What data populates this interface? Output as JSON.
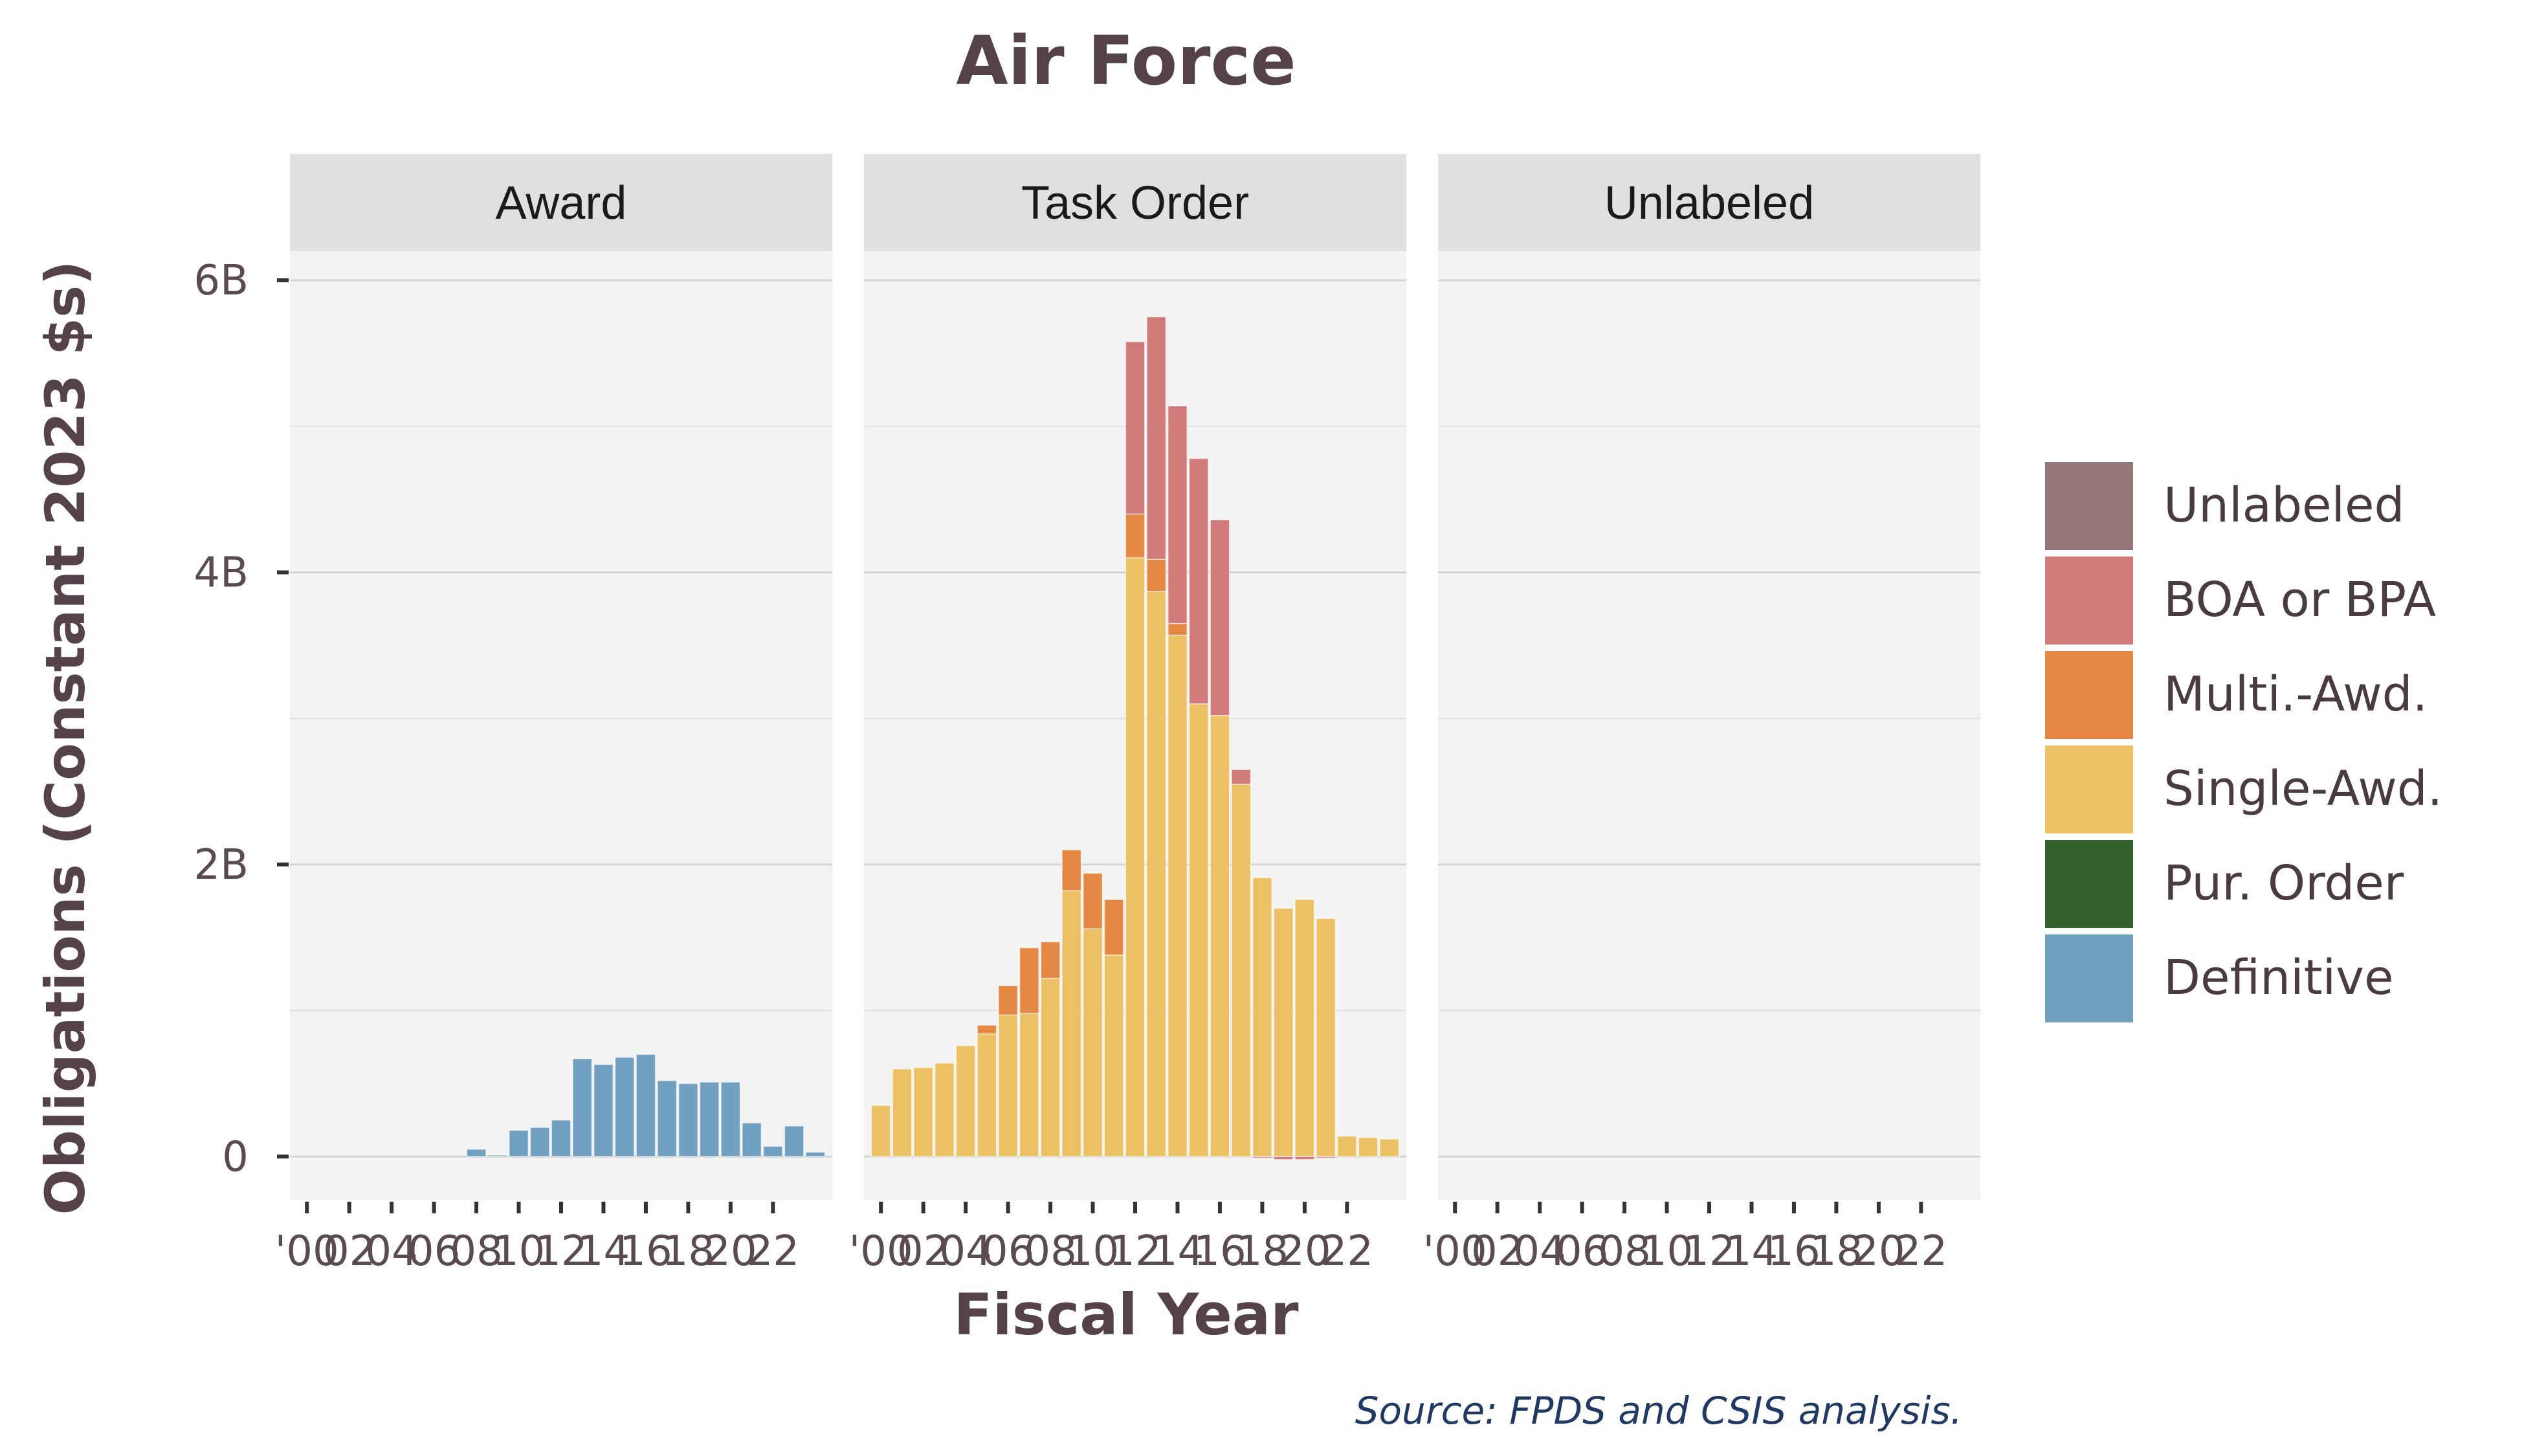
{
  "chart_data": {
    "type": "bar",
    "stacked": true,
    "title": "Air Force",
    "xlabel": "Fiscal Year",
    "ylabel": "Obligations (Constant 2023 $s)",
    "source": "Source: FPDS and CSIS analysis.",
    "ylim": [
      -0.3,
      6.2
    ],
    "y_ticks": [
      {
        "value": 0,
        "label": "0"
      },
      {
        "value": 2,
        "label": "2B"
      },
      {
        "value": 4,
        "label": "4B"
      },
      {
        "value": 6,
        "label": "6B"
      }
    ],
    "x_tick_years": [
      2000,
      2002,
      2004,
      2006,
      2008,
      2010,
      2012,
      2014,
      2016,
      2018,
      2020,
      2022
    ],
    "x_tick_labels": [
      "'00",
      "02",
      "04",
      "06",
      "08",
      "10",
      "12",
      "14",
      "16",
      "18",
      "20",
      "22"
    ],
    "x_range": [
      1999.2,
      2024.8
    ],
    "years": [
      2000,
      2001,
      2002,
      2003,
      2004,
      2005,
      2006,
      2007,
      2008,
      2009,
      2010,
      2011,
      2012,
      2013,
      2014,
      2015,
      2016,
      2017,
      2018,
      2019,
      2020,
      2021,
      2022,
      2023,
      2024
    ],
    "grid": true,
    "legend_position": "right",
    "legend": [
      {
        "name": "Unlabeled",
        "color": "#967878"
      },
      {
        "name": "BOA or BPA",
        "color": "#d27b7b"
      },
      {
        "name": "Multi.-Awd.",
        "color": "#e48844"
      },
      {
        "name": "Single-Awd.",
        "color": "#ecc064"
      },
      {
        "name": "Pur. Order",
        "color": "#33622e"
      },
      {
        "name": "Definitive",
        "color": "#72a0c1"
      }
    ],
    "stack_order": [
      "Single-Awd.",
      "Multi.-Awd.",
      "BOA or BPA",
      "Definitive"
    ],
    "panels": [
      {
        "label": "Award",
        "series": [
          {
            "name": "Definitive",
            "values": [
              0,
              0,
              0,
              0,
              0,
              0,
              0,
              0,
              0.05,
              0.01,
              0.18,
              0.2,
              0.25,
              0.67,
              0.63,
              0.68,
              0.7,
              0.52,
              0.5,
              0.51,
              0.51,
              0.23,
              0.07,
              0.21,
              0.03
            ]
          }
        ]
      },
      {
        "label": "Task Order",
        "series": [
          {
            "name": "Single-Awd.",
            "values": [
              0.35,
              0.6,
              0.61,
              0.64,
              0.76,
              0.84,
              0.97,
              0.98,
              1.22,
              1.82,
              1.56,
              1.38,
              4.1,
              3.87,
              3.57,
              3.1,
              3.02,
              2.55,
              1.91,
              1.7,
              1.76,
              1.63,
              0.14,
              0.13,
              0.12
            ]
          },
          {
            "name": "Multi.-Awd.",
            "values": [
              0,
              0,
              0,
              0,
              0,
              0.06,
              0.2,
              0.45,
              0.25,
              0.28,
              0.38,
              0.38,
              0.3,
              0.22,
              0.08,
              0,
              0,
              0,
              0,
              0,
              0,
              0,
              0,
              0,
              0
            ]
          },
          {
            "name": "BOA or BPA",
            "values": [
              0,
              0,
              0,
              0,
              0,
              0,
              0,
              0,
              0,
              0,
              0,
              0,
              1.18,
              1.66,
              1.49,
              1.68,
              1.34,
              0.1,
              -0.01,
              -0.02,
              -0.02,
              -0.01,
              0,
              0,
              0
            ]
          }
        ]
      },
      {
        "label": "Unlabeled",
        "series": []
      }
    ]
  }
}
